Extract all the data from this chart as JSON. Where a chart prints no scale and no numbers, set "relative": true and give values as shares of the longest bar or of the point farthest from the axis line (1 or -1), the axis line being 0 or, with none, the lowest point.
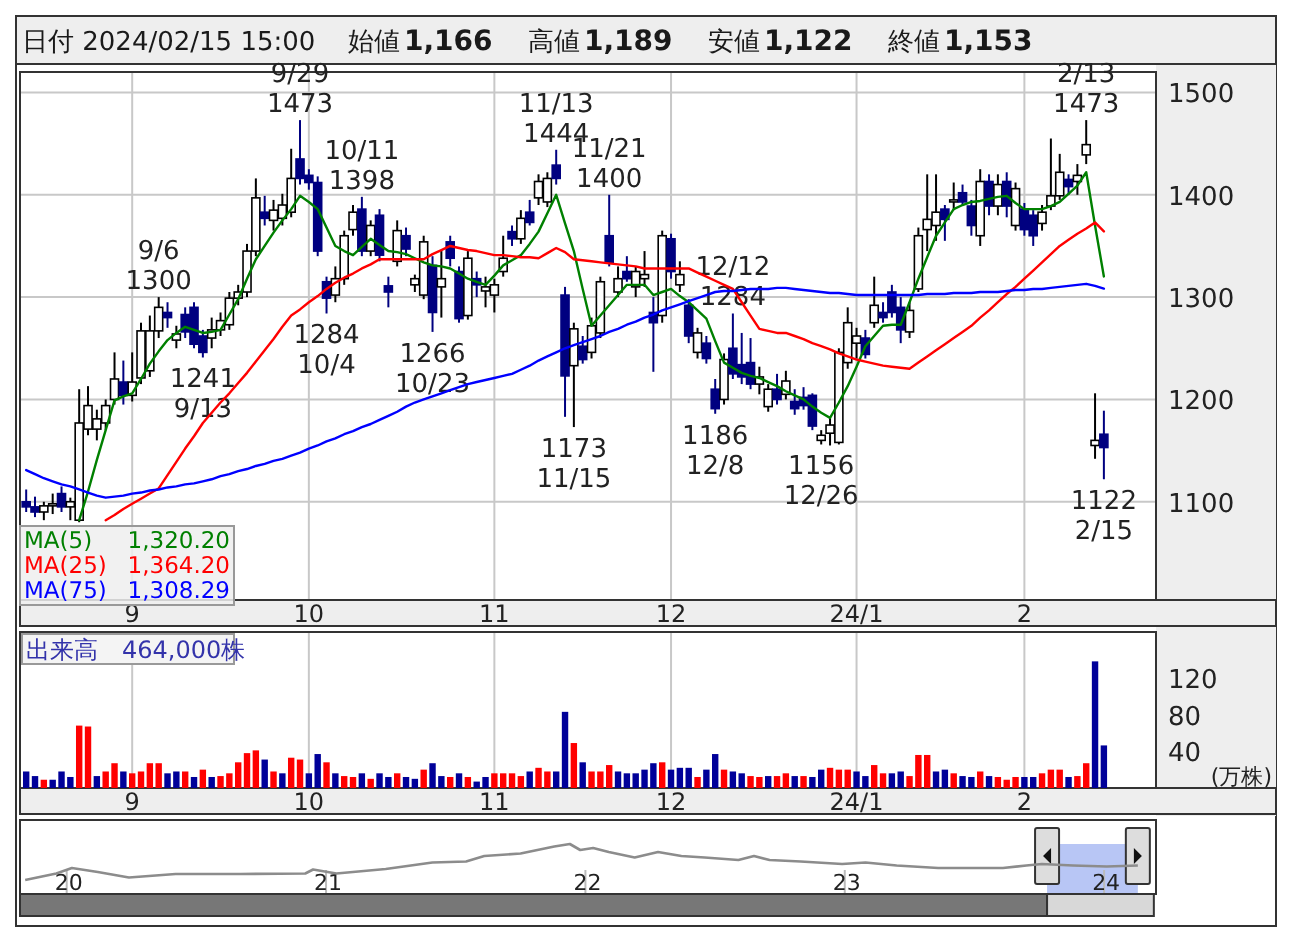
{
  "chart_data": [
    {
      "type": "other",
      "title": "日付 2024/02/15 15:00",
      "categories": [
        "始値",
        "高値",
        "安値",
        "終値"
      ],
      "value_labels": [
        "1,166",
        "1,189",
        "1,122",
        "1,153"
      ]
    },
    {
      "type": "candlestick",
      "categories": [
        null,
        null,
        null,
        null,
        null,
        null,
        null,
        null,
        null,
        null,
        null,
        null,
        "9",
        null,
        null,
        null,
        null,
        null,
        null,
        null,
        null,
        null,
        null,
        null,
        null,
        null,
        null,
        null,
        null,
        null,
        null,
        null,
        "10",
        null,
        null,
        null,
        null,
        null,
        null,
        null,
        null,
        null,
        null,
        null,
        null,
        null,
        null,
        null,
        null,
        null,
        null,
        null,
        null,
        "11",
        null,
        null,
        null,
        null,
        null,
        null,
        null,
        null,
        null,
        null,
        null,
        null,
        null,
        null,
        null,
        null,
        null,
        null,
        null,
        "12",
        null,
        null,
        null,
        null,
        null,
        null,
        null,
        null,
        null,
        null,
        null,
        null,
        null,
        null,
        null,
        null,
        null,
        null,
        null,
        null,
        "24/1",
        null,
        null,
        null,
        null,
        null,
        null,
        null,
        null,
        null,
        null,
        null,
        null,
        null,
        null,
        null,
        null,
        null,
        null,
        "2",
        null,
        null,
        null,
        null,
        null,
        null,
        null,
        null,
        null
      ],
      "ohlc": [
        [
          1100,
          1112,
          1090,
          1095
        ],
        [
          1095,
          1105,
          1085,
          1090
        ],
        [
          1090,
          1100,
          1082,
          1096
        ],
        [
          1096,
          1108,
          1088,
          1098
        ],
        [
          1108,
          1115,
          1090,
          1095
        ],
        [
          1095,
          1104,
          1082,
          1100
        ],
        [
          1082,
          1210,
          1080,
          1177
        ],
        [
          1171,
          1213,
          1165,
          1194
        ],
        [
          1171,
          1190,
          1160,
          1181
        ],
        [
          1177,
          1200,
          1170,
          1194
        ],
        [
          1200,
          1246,
          1195,
          1220
        ],
        [
          1217,
          1238,
          1195,
          1204
        ],
        [
          1204,
          1246,
          1198,
          1217
        ],
        [
          1221,
          1275,
          1215,
          1267
        ],
        [
          1228,
          1282,
          1222,
          1267
        ],
        [
          1267,
          1300,
          1260,
          1290
        ],
        [
          1285,
          1295,
          1270,
          1280
        ],
        [
          1258,
          1272,
          1250,
          1264
        ],
        [
          1283,
          1290,
          1260,
          1266
        ],
        [
          1290,
          1295,
          1250,
          1254
        ],
        [
          1262,
          1268,
          1241,
          1246
        ],
        [
          1260,
          1280,
          1250,
          1268
        ],
        [
          1268,
          1285,
          1262,
          1277
        ],
        [
          1273,
          1305,
          1268,
          1299
        ],
        [
          1299,
          1312,
          1292,
          1305
        ],
        [
          1305,
          1352,
          1300,
          1345
        ],
        [
          1345,
          1416,
          1340,
          1397
        ],
        [
          1383,
          1399,
          1370,
          1377
        ],
        [
          1375,
          1395,
          1365,
          1385
        ],
        [
          1377,
          1401,
          1370,
          1390
        ],
        [
          1383,
          1445,
          1378,
          1416
        ],
        [
          1435,
          1473,
          1410,
          1416
        ],
        [
          1419,
          1425,
          1405,
          1412
        ],
        [
          1412,
          1418,
          1340,
          1345
        ],
        [
          1315,
          1320,
          1284,
          1299
        ],
        [
          1302,
          1330,
          1295,
          1318
        ],
        [
          1318,
          1365,
          1312,
          1360
        ],
        [
          1366,
          1390,
          1360,
          1383
        ],
        [
          1386,
          1398,
          1340,
          1345
        ],
        [
          1345,
          1375,
          1340,
          1370
        ],
        [
          1380,
          1386,
          1335,
          1341
        ],
        [
          1311,
          1320,
          1290,
          1305
        ],
        [
          1335,
          1375,
          1330,
          1365
        ],
        [
          1360,
          1368,
          1340,
          1347
        ],
        [
          1312,
          1322,
          1305,
          1318
        ],
        [
          1302,
          1360,
          1298,
          1354
        ],
        [
          1331,
          1340,
          1266,
          1285
        ],
        [
          1310,
          1345,
          1280,
          1318
        ],
        [
          1354,
          1360,
          1330,
          1338
        ],
        [
          1325,
          1330,
          1275,
          1279
        ],
        [
          1282,
          1345,
          1278,
          1338
        ],
        [
          1318,
          1325,
          1300,
          1312
        ],
        [
          1306,
          1320,
          1290,
          1310
        ],
        [
          1302,
          1318,
          1285,
          1312
        ],
        [
          1325,
          1360,
          1320,
          1338
        ],
        [
          1364,
          1370,
          1350,
          1357
        ],
        [
          1357,
          1385,
          1352,
          1377
        ],
        [
          1383,
          1395,
          1370,
          1373
        ],
        [
          1397,
          1420,
          1390,
          1413
        ],
        [
          1393,
          1422,
          1388,
          1416
        ],
        [
          1429,
          1444,
          1410,
          1416
        ],
        [
          1302,
          1310,
          1183,
          1223
        ],
        [
          1233,
          1275,
          1173,
          1269
        ],
        [
          1252,
          1262,
          1235,
          1239
        ],
        [
          1246,
          1280,
          1240,
          1272
        ],
        [
          1265,
          1320,
          1260,
          1315
        ],
        [
          1360,
          1400,
          1330,
          1334
        ],
        [
          1305,
          1330,
          1300,
          1318
        ],
        [
          1325,
          1340,
          1315,
          1318
        ],
        [
          1310,
          1330,
          1300,
          1325
        ],
        [
          1318,
          1345,
          1310,
          1322
        ],
        [
          1285,
          1300,
          1227,
          1275
        ],
        [
          1282,
          1365,
          1275,
          1360
        ],
        [
          1357,
          1362,
          1318,
          1325
        ],
        [
          1312,
          1335,
          1305,
          1322
        ],
        [
          1292,
          1298,
          1255,
          1262
        ],
        [
          1246,
          1270,
          1240,
          1265
        ],
        [
          1255,
          1262,
          1235,
          1240
        ],
        [
          1210,
          1220,
          1186,
          1191
        ],
        [
          1200,
          1245,
          1195,
          1239
        ],
        [
          1250,
          1284,
          1220,
          1225
        ],
        [
          1234,
          1265,
          1215,
          1222
        ],
        [
          1236,
          1260,
          1210,
          1215
        ],
        [
          1215,
          1232,
          1205,
          1222
        ],
        [
          1193,
          1215,
          1188,
          1210
        ],
        [
          1210,
          1225,
          1195,
          1200
        ],
        [
          1205,
          1228,
          1200,
          1218
        ],
        [
          1198,
          1210,
          1185,
          1191
        ],
        [
          1202,
          1212,
          1190,
          1194
        ],
        [
          1204,
          1206,
          1170,
          1174
        ],
        [
          1160,
          1170,
          1156,
          1165
        ],
        [
          1167,
          1182,
          1155,
          1175
        ],
        [
          1158,
          1250,
          1156,
          1246
        ],
        [
          1236,
          1290,
          1230,
          1275
        ],
        [
          1255,
          1270,
          1240,
          1262
        ],
        [
          1260,
          1268,
          1240,
          1244
        ],
        [
          1275,
          1320,
          1270,
          1292
        ],
        [
          1285,
          1295,
          1275,
          1280
        ],
        [
          1305,
          1312,
          1280,
          1285
        ],
        [
          1290,
          1300,
          1255,
          1268
        ],
        [
          1266,
          1295,
          1260,
          1287
        ],
        [
          1308,
          1368,
          1305,
          1360
        ],
        [
          1366,
          1420,
          1345,
          1376
        ],
        [
          1370,
          1420,
          1355,
          1383
        ],
        [
          1386,
          1390,
          1355,
          1376
        ],
        [
          1393,
          1412,
          1385,
          1395
        ],
        [
          1402,
          1410,
          1390,
          1393
        ],
        [
          1389,
          1395,
          1360,
          1370
        ],
        [
          1360,
          1425,
          1350,
          1413
        ],
        [
          1413,
          1420,
          1380,
          1389
        ],
        [
          1389,
          1420,
          1380,
          1410
        ],
        [
          1413,
          1422,
          1378,
          1389
        ],
        [
          1370,
          1412,
          1365,
          1406
        ],
        [
          1386,
          1392,
          1360,
          1366
        ],
        [
          1380,
          1385,
          1350,
          1360
        ],
        [
          1372,
          1390,
          1365,
          1383
        ],
        [
          1389,
          1455,
          1385,
          1399
        ],
        [
          1399,
          1440,
          1395,
          1422
        ],
        [
          1415,
          1420,
          1400,
          1408
        ],
        [
          1413,
          1430,
          1400,
          1419
        ],
        [
          1439,
          1473,
          1430,
          1449
        ],
        [
          1155,
          1206,
          1142,
          1160
        ],
        [
          1166,
          1189,
          1122,
          1153
        ]
      ],
      "colors": [
        "#000080",
        "#000080",
        "#ffffff",
        "#ffffff",
        "#000080",
        "#ffffff",
        "#ffffff",
        "#ffffff",
        "#ffffff",
        "#ffffff",
        "#ffffff",
        "#000080",
        "#ffffff",
        "#ffffff",
        "#ffffff",
        "#ffffff",
        "#000080",
        "#ffffff",
        "#000080",
        "#000080",
        "#000080",
        "#ffffff",
        "#ffffff",
        "#ffffff",
        "#ffffff",
        "#ffffff",
        "#ffffff",
        "#000080",
        "#ffffff",
        "#ffffff",
        "#ffffff",
        "#000080",
        "#000080",
        "#000080",
        "#000080",
        "#ffffff",
        "#ffffff",
        "#ffffff",
        "#000080",
        "#ffffff",
        "#000080",
        "#000080",
        "#ffffff",
        "#000080",
        "#ffffff",
        "#ffffff",
        "#000080",
        "#ffffff",
        "#000080",
        "#000080",
        "#ffffff",
        "#000080",
        "#ffffff",
        "#ffffff",
        "#ffffff",
        "#000080",
        "#ffffff",
        "#000080",
        "#ffffff",
        "#ffffff",
        "#000080",
        "#000080",
        "#ffffff",
        "#000080",
        "#ffffff",
        "#ffffff",
        "#000080",
        "#ffffff",
        "#000080",
        "#ffffff",
        "#ffffff",
        "#000080",
        "#ffffff",
        "#000080",
        "#ffffff",
        "#000080",
        "#ffffff",
        "#000080",
        "#000080",
        "#ffffff",
        "#000080",
        "#000080",
        "#000080",
        "#ffffff",
        "#ffffff",
        "#000080",
        "#ffffff",
        "#000080",
        "#000080",
        "#000080",
        "#ffffff",
        "#ffffff",
        "#ffffff",
        "#ffffff",
        "#ffffff",
        "#000080",
        "#ffffff",
        "#000080",
        "#000080",
        "#000080",
        "#ffffff",
        "#ffffff",
        "#ffffff",
        "#ffffff",
        "#000080",
        "#ffffff",
        "#000080",
        "#000080",
        "#ffffff",
        "#000080",
        "#ffffff",
        "#000080",
        "#ffffff",
        "#000080",
        "#000080",
        "#ffffff",
        "#ffffff",
        "#ffffff",
        "#000080",
        "#ffffff",
        "#ffffff",
        "#ffffff",
        "#000080"
      ],
      "series": [
        {
          "name": "MA(5)",
          "type": "line",
          "color": "#008000",
          "values": [
            null,
            null,
            null,
            null,
            null,
            null,
            1082,
            1110,
            1141,
            1170,
            1199,
            1203,
            1206,
            1220,
            1235,
            1247,
            1258,
            1265,
            1271,
            1268,
            1265,
            1266,
            1268,
            1283,
            1298,
            1318,
            1337,
            1350,
            1363,
            1375,
            1386,
            1399,
            1393,
            1386,
            1368,
            1350,
            1345,
            1341,
            1349,
            1357,
            1351,
            1345,
            1344,
            1342,
            1338,
            1334,
            1331,
            1330,
            1328,
            1323,
            1318,
            1315,
            1312,
            1321,
            1331,
            1336,
            1341,
            1352,
            1364,
            1382,
            1400,
            1372,
            1345,
            1308,
            1272,
            1282,
            1292,
            1302,
            1312,
            1312,
            1312,
            1302,
            1305,
            1308,
            1301,
            1295,
            1287,
            1279,
            1257,
            1236,
            1231,
            1226,
            1223,
            1221,
            1217,
            1213,
            1208,
            1204,
            1200,
            1193,
            1187,
            1182,
            1197,
            1213,
            1232,
            1252,
            1262,
            1272,
            1273,
            1273,
            1295,
            1318,
            1339,
            1360,
            1373,
            1386,
            1390,
            1393,
            1394,
            1396,
            1398,
            1399,
            1392,
            1386,
            1386,
            1386,
            1389,
            1393,
            1401,
            1409,
            1422,
            1370,
            1320.2
          ]
        },
        {
          "name": "MA(25)",
          "type": "line",
          "color": "#ff0000",
          "values": [
            null,
            null,
            null,
            null,
            null,
            null,
            null,
            null,
            null,
            1082,
            1087,
            1093,
            1098,
            1103,
            1108,
            1113,
            1126,
            1139,
            1152,
            1164,
            1177,
            1187,
            1197,
            1206,
            1216,
            1226,
            1237,
            1248,
            1259,
            1271,
            1282,
            1288,
            1295,
            1301,
            1308,
            1314,
            1319,
            1323,
            1328,
            1332,
            1337,
            1337,
            1337,
            1337,
            1337,
            1337,
            1342,
            1346,
            1350,
            1348,
            1346,
            1345,
            1343,
            1341,
            1341,
            1340,
            1339,
            1339,
            1338,
            1343,
            1348,
            1344,
            1337,
            1336,
            1335,
            1334,
            1333,
            1332,
            1331,
            1330,
            1328,
            1328,
            1328,
            1328,
            1328,
            1328,
            1324,
            1320,
            1316,
            1312,
            1308,
            1295,
            1282,
            1269,
            1267,
            1265,
            1265,
            1262,
            1259,
            1255,
            1252,
            1249,
            1245,
            1242,
            1239,
            1237,
            1235,
            1233,
            1232,
            1231,
            1230,
            1236,
            1242,
            1248,
            1254,
            1260,
            1266,
            1272,
            1280,
            1287,
            1295,
            1303,
            1310,
            1318,
            1326,
            1334,
            1342,
            1350,
            1356,
            1362,
            1367,
            1373,
            1364.2
          ]
        },
        {
          "name": "MA(75)",
          "type": "line",
          "color": "#0000ff",
          "values": [
            1131,
            1127,
            1123,
            1120,
            1117,
            1115,
            1112,
            1109,
            1106,
            1104,
            1105,
            1106,
            1108,
            1109,
            1111,
            1112,
            1114,
            1115,
            1117,
            1118,
            1120,
            1122,
            1125,
            1127,
            1130,
            1132,
            1135,
            1137,
            1140,
            1142,
            1145,
            1148,
            1152,
            1155,
            1159,
            1162,
            1166,
            1169,
            1173,
            1176,
            1180,
            1184,
            1188,
            1193,
            1197,
            1200,
            1203,
            1206,
            1209,
            1212,
            1215,
            1217,
            1219,
            1221,
            1223,
            1225,
            1229,
            1233,
            1238,
            1242,
            1246,
            1250,
            1253,
            1256,
            1259,
            1262,
            1266,
            1269,
            1273,
            1276,
            1280,
            1283,
            1287,
            1290,
            1293,
            1296,
            1299,
            1302,
            1305,
            1306,
            1306,
            1307,
            1308,
            1308,
            1308,
            1309,
            1309,
            1308,
            1307,
            1306,
            1305,
            1304,
            1304,
            1303,
            1302,
            1302,
            1302,
            1302,
            1302,
            1302,
            1302,
            1302,
            1303,
            1303,
            1303,
            1304,
            1304,
            1304,
            1305,
            1305,
            1305,
            1306,
            1307,
            1307,
            1308,
            1308,
            1309,
            1310,
            1311,
            1312,
            1313,
            1311,
            1308.29
          ]
        }
      ],
      "ylim": [
        1004,
        1520
      ],
      "yticks": [
        1100,
        1200,
        1300,
        1400,
        1500
      ],
      "grid": true,
      "legend": "bottom left",
      "annotations": [
        "1,320.20",
        "1,364.20",
        "1,308.29",
        {
          "text": "9/6\n1300",
          "y": 1300
        },
        {
          "text": "1241\n9/13",
          "y": 1241
        },
        {
          "text": "9/29\n1473",
          "y": 1473
        },
        {
          "text": "1284\n10/4",
          "y": 1284
        },
        {
          "text": "10/11\n1398",
          "y": 1398
        },
        {
          "text": "1266\n10/23",
          "y": 1266
        },
        {
          "text": "11/13\n1444",
          "y": 1444
        },
        {
          "text": "1173\n11/15",
          "y": 1173
        },
        {
          "text": "11/21\n1400",
          "y": 1400
        },
        {
          "text": "1186\n12/8",
          "y": 1186
        },
        {
          "text": "12/12\n1284",
          "y": 1284
        },
        {
          "text": "1156\n12/26",
          "y": 1156
        },
        {
          "text": "2/13\n1473",
          "y": 1473
        },
        {
          "text": "1122\n2/15",
          "y": 1122
        }
      ]
    },
    {
      "type": "bar",
      "title": "出来高　464,000株",
      "ylabel": "(万株)",
      "categories": [
        null,
        null,
        null,
        null,
        null,
        null,
        null,
        null,
        null,
        null,
        null,
        null,
        "9",
        null,
        null,
        null,
        null,
        null,
        null,
        null,
        null,
        null,
        null,
        null,
        null,
        null,
        null,
        null,
        null,
        null,
        null,
        null,
        "10",
        null,
        null,
        null,
        null,
        null,
        null,
        null,
        null,
        null,
        null,
        null,
        null,
        null,
        null,
        null,
        null,
        null,
        null,
        null,
        null,
        "11",
        null,
        null,
        null,
        null,
        null,
        null,
        null,
        null,
        null,
        null,
        null,
        null,
        null,
        null,
        null,
        null,
        null,
        null,
        null,
        "12",
        null,
        null,
        null,
        null,
        null,
        null,
        null,
        null,
        null,
        null,
        null,
        null,
        null,
        null,
        null,
        null,
        null,
        null,
        null,
        null,
        "24/1",
        null,
        null,
        null,
        null,
        null,
        null,
        null,
        null,
        null,
        null,
        null,
        null,
        null,
        null,
        null,
        null,
        null,
        null,
        "2",
        null,
        null,
        null,
        null,
        null,
        null,
        null,
        null,
        null
      ],
      "values": [
        18,
        13,
        9,
        9,
        18,
        12,
        68,
        67,
        13,
        18,
        27,
        18,
        16,
        18,
        27,
        27,
        16,
        18,
        18,
        12,
        20,
        12,
        13,
        16,
        28,
        38,
        41,
        31,
        18,
        16,
        33,
        31,
        16,
        37,
        28,
        16,
        13,
        12,
        16,
        10,
        16,
        12,
        16,
        12,
        10,
        20,
        27,
        13,
        12,
        16,
        12,
        7,
        12,
        16,
        16,
        16,
        13,
        18,
        22,
        18,
        18,
        83,
        49,
        28,
        18,
        18,
        25,
        18,
        16,
        16,
        20,
        27,
        28,
        20,
        22,
        22,
        12,
        20,
        37,
        20,
        18,
        16,
        13,
        12,
        13,
        13,
        16,
        13,
        13,
        12,
        20,
        22,
        20,
        20,
        18,
        13,
        25,
        16,
        16,
        18,
        13,
        36,
        36,
        18,
        20,
        16,
        13,
        12,
        18,
        13,
        12,
        9,
        12,
        12,
        12,
        16,
        20,
        20,
        12,
        13,
        27,
        138,
        46.4
      ],
      "colors": [
        "#000099",
        "#000099",
        "#ff0000",
        "#000099",
        "#000099",
        "#000099",
        "#ff0000",
        "#ff0000",
        "#000099",
        "#ff0000",
        "#ff0000",
        "#000099",
        "#ff0000",
        "#ff0000",
        "#ff0000",
        "#ff0000",
        "#000099",
        "#000099",
        "#ff0000",
        "#000099",
        "#ff0000",
        "#000099",
        "#ff0000",
        "#ff0000",
        "#ff0000",
        "#ff0000",
        "#ff0000",
        "#000099",
        "#ff0000",
        "#000099",
        "#ff0000",
        "#ff0000",
        "#000099",
        "#000099",
        "#ff0000",
        "#000099",
        "#ff0000",
        "#ff0000",
        "#000099",
        "#ff0000",
        "#000099",
        "#000099",
        "#ff0000",
        "#000099",
        "#000099",
        "#ff0000",
        "#000099",
        "#000099",
        "#ff0000",
        "#000099",
        "#ff0000",
        "#000099",
        "#000099",
        "#ff0000",
        "#ff0000",
        "#ff0000",
        "#ff0000",
        "#000099",
        "#ff0000",
        "#ff0000",
        "#000099",
        "#000099",
        "#ff0000",
        "#000099",
        "#ff0000",
        "#ff0000",
        "#ff0000",
        "#000099",
        "#000099",
        "#000099",
        "#000099",
        "#000099",
        "#ff0000",
        "#000099",
        "#000099",
        "#000099",
        "#ff0000",
        "#000099",
        "#000099",
        "#ff0000",
        "#000099",
        "#000099",
        "#ff0000",
        "#ff0000",
        "#000099",
        "#ff0000",
        "#ff0000",
        "#000099",
        "#ff0000",
        "#000099",
        "#000099",
        "#ff0000",
        "#ff0000",
        "#ff0000",
        "#000099",
        "#000099",
        "#ff0000",
        "#ff0000",
        "#000099",
        "#000099",
        "#ff0000",
        "#ff0000",
        "#ff0000",
        "#000099",
        "#000099",
        "#ff0000",
        "#000099",
        "#000099",
        "#ff0000",
        "#000099",
        "#ff0000",
        "#ff0000",
        "#ff0000",
        "#000099",
        "#000099",
        "#ff0000",
        "#ff0000",
        "#ff0000",
        "#000099",
        "#ff0000",
        "#ff0000",
        "#000099",
        "#000099"
      ],
      "ylim": [
        0,
        170
      ],
      "yticks": [
        40,
        80,
        120
      ],
      "grid": "x"
    },
    {
      "type": "line",
      "relative": true,
      "tick_labels": "x",
      "x": [
        2019.84,
        2019.96,
        2020.02,
        2020.12,
        2020.24,
        2020.42,
        2020.67,
        2020.92,
        2020.95,
        2021.04,
        2021.23,
        2021.41,
        2021.54,
        2021.61,
        2021.75,
        2021.88,
        2021.94,
        2021.98,
        2022.03,
        2022.09,
        2022.19,
        2022.28,
        2022.37,
        2022.46,
        2022.59,
        2022.65,
        2022.71,
        2022.83,
        2022.99,
        2023.08,
        2023.2,
        2023.36,
        2023.51,
        2023.61,
        2023.7,
        2023.76,
        2023.88,
        2024.01,
        2024.13
      ],
      "series": [
        {
          "color": "#8c8c8c",
          "values": [
            0.28,
            0.41,
            0.52,
            0.44,
            0.33,
            0.4,
            0.4,
            0.41,
            0.49,
            0.41,
            0.5,
            0.63,
            0.65,
            0.76,
            0.81,
            0.95,
            1,
            0.88,
            0.92,
            0.84,
            0.73,
            0.84,
            0.76,
            0.73,
            0.68,
            0.76,
            0.68,
            0.65,
            0.6,
            0.63,
            0.57,
            0.52,
            0.52,
            0.52,
            0.57,
            0.6,
            0.57,
            0.55,
            0.57
          ]
        }
      ],
      "xlim": [
        2019.82,
        2024.2
      ],
      "xticks": [
        {
          "value": 2020,
          "label": "20"
        },
        {
          "value": 2021,
          "label": "21"
        },
        {
          "value": 2022,
          "label": "22"
        },
        {
          "value": 2023,
          "label": "23"
        },
        {
          "value": 2024,
          "label": "24"
        }
      ],
      "bands": [
        {
          "axis": "x",
          "from": 2023.78,
          "to": 2024.13,
          "color": "#b8c6f5"
        }
      ]
    }
  ]
}
